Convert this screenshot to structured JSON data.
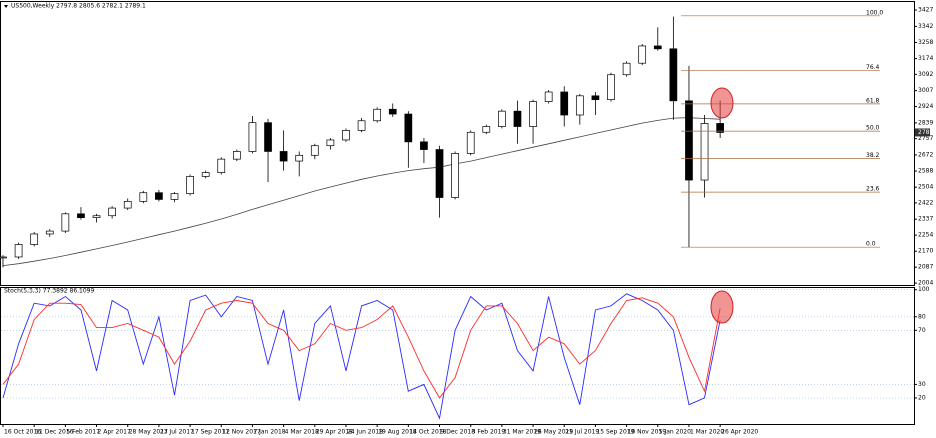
{
  "chart_data": [
    {
      "type": "candlestick",
      "title": "US500,Weekly  2797.8 2805.6 2782.1 2789.1",
      "categories": [
        "16 Oct 2016",
        null,
        "11 Dec 2016",
        null,
        "5 Feb 2017",
        null,
        "2 Apr 2017",
        null,
        "28 May 2017",
        null,
        "23 Jul 2017",
        null,
        "17 Sep 2017",
        null,
        "12 Nov 2017",
        null,
        "7 Jan 2018",
        null,
        "4 Mar 2018",
        null,
        "29 Apr 2018",
        null,
        "24 Jun 2018",
        null,
        "19 Aug 2018",
        null,
        "14 Oct 2018",
        null,
        "9 Dec 2018",
        null,
        "3 Feb 2019",
        null,
        "31 Mar 2019",
        null,
        "26 May 2019",
        null,
        "21 Jul 2019",
        null,
        "15 Sep 2019",
        null,
        "10 Nov 2019",
        null,
        "5 Jan 2020",
        null,
        "1 Mar 2020",
        null,
        "26 Apr 2020"
      ],
      "open": [
        2135,
        2140,
        2205,
        2260,
        2275,
        2365,
        2345,
        2355,
        2395,
        2430,
        2475,
        2440,
        2470,
        2560,
        2580,
        2650,
        2690,
        2840,
        2690,
        2640,
        2670,
        2720,
        2750,
        2800,
        2850,
        2910,
        2885,
        2740,
        2700,
        2450,
        2680,
        2790,
        2820,
        2900,
        2820,
        2950,
        3000,
        2880,
        2980,
        2960,
        3090,
        3150,
        3240,
        3225,
        2954,
        2541,
        2836
      ],
      "high": [
        2150,
        2215,
        2270,
        2285,
        2372,
        2400,
        2365,
        2405,
        2445,
        2485,
        2490,
        2478,
        2570,
        2590,
        2660,
        2700,
        2875,
        2860,
        2800,
        2690,
        2730,
        2760,
        2810,
        2865,
        2920,
        2940,
        2900,
        2760,
        2720,
        2690,
        2800,
        2830,
        2910,
        2955,
        2960,
        3010,
        3030,
        2990,
        3000,
        3100,
        3160,
        3250,
        3337,
        3393,
        3136,
        2880,
        2955
      ],
      "low": [
        2085,
        2130,
        2195,
        2245,
        2265,
        2335,
        2320,
        2340,
        2385,
        2420,
        2430,
        2425,
        2460,
        2550,
        2570,
        2640,
        2680,
        2530,
        2590,
        2560,
        2650,
        2700,
        2740,
        2790,
        2840,
        2870,
        2605,
        2630,
        2345,
        2440,
        2670,
        2780,
        2810,
        2730,
        2730,
        2940,
        2820,
        2830,
        2880,
        2950,
        3080,
        3140,
        3215,
        2855,
        2191,
        2450,
        2760
      ],
      "close": [
        2140,
        2205,
        2260,
        2275,
        2365,
        2345,
        2355,
        2395,
        2430,
        2475,
        2440,
        2470,
        2560,
        2580,
        2650,
        2690,
        2840,
        2690,
        2640,
        2670,
        2720,
        2750,
        2800,
        2850,
        2910,
        2885,
        2740,
        2700,
        2450,
        2680,
        2790,
        2820,
        2900,
        2820,
        2950,
        3000,
        2880,
        2980,
        2960,
        3090,
        3150,
        3240,
        3225,
        2954,
        2541,
        2836,
        2789
      ],
      "ma_values": [
        2095,
        2105,
        2118,
        2132,
        2148,
        2165,
        2182,
        2200,
        2218,
        2237,
        2256,
        2275,
        2295,
        2316,
        2338,
        2362,
        2388,
        2412,
        2436,
        2460,
        2484,
        2505,
        2525,
        2545,
        2562,
        2577,
        2590,
        2600,
        2608,
        2625,
        2640,
        2658,
        2676,
        2694,
        2712,
        2730,
        2748,
        2766,
        2784,
        2802,
        2820,
        2838,
        2852,
        2864,
        2866,
        2862,
        2858
      ],
      "ma_color": "#444444",
      "up_color": "#ffffff",
      "down_color": "#000000",
      "ylim": [
        1994,
        3469
      ],
      "yticks": [
        2004,
        2087,
        2170,
        2254,
        2337,
        2422,
        2504,
        2588,
        2672,
        2757,
        2839,
        2924,
        3007,
        3092,
        3174,
        3258,
        3342,
        3427
      ],
      "last_price": {
        "value": 2789,
        "label": "2789"
      },
      "fib_color": "#b06a3a",
      "fib_levels": [
        {
          "label": "100.0",
          "price": 3397
        },
        {
          "label": "76.4",
          "price": 3113
        },
        {
          "label": "61.8",
          "price": 2938
        },
        {
          "label": "50.0",
          "price": 2796
        },
        {
          "label": "38.2",
          "price": 2654
        },
        {
          "label": "23.6",
          "price": 2478
        },
        {
          "label": "0.0",
          "price": 2191
        }
      ]
    },
    {
      "type": "line",
      "title": "Stoch(5,3,3) 77.3892 86.1099",
      "series": [
        {
          "color": "#2a2aff",
          "values": [
            20,
            60,
            90,
            88,
            95,
            85,
            40,
            92,
            85,
            45,
            80,
            22,
            92,
            96,
            80,
            95,
            92,
            45,
            85,
            18,
            75,
            88,
            40,
            88,
            92,
            85,
            25,
            30,
            5,
            70,
            95,
            85,
            90,
            55,
            40,
            95,
            50,
            15,
            85,
            88,
            97,
            92,
            85,
            70,
            15,
            20,
            77.3892
          ]
        },
        {
          "color": "#ff2a2a",
          "values": [
            30,
            45,
            78,
            90,
            90,
            89,
            72,
            72,
            75,
            70,
            65,
            45,
            62,
            85,
            90,
            92,
            90,
            75,
            70,
            55,
            60,
            75,
            70,
            72,
            78,
            88,
            65,
            40,
            20,
            35,
            70,
            88,
            88,
            75,
            55,
            65,
            60,
            45,
            55,
            75,
            92,
            94,
            90,
            80,
            50,
            25,
            86.1099
          ]
        }
      ],
      "ylim": [
        0,
        102
      ],
      "yticks": [
        20,
        30,
        70,
        80,
        100
      ],
      "grid": true
    }
  ]
}
